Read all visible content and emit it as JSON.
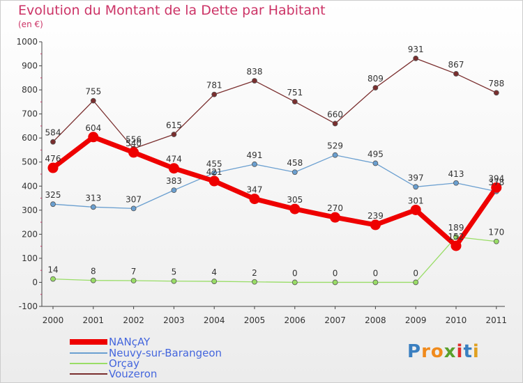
{
  "title": "Evolution du Montant de la Dette par Habitant",
  "subtitle": "(en €)",
  "logo": {
    "text": "Proxiti",
    "colors": [
      "#3a7fc0",
      "#f08a1c",
      "#f08a1c",
      "#5aa02c",
      "#e0302c",
      "#3a7fc0",
      "#e0a020"
    ]
  },
  "chart_data": {
    "type": "line",
    "x": [
      "2000",
      "2001",
      "2002",
      "2003",
      "2004",
      "2005",
      "2006",
      "2007",
      "2008",
      "2009",
      "2010",
      "2011"
    ],
    "ylim": [
      -100,
      1000
    ],
    "yticks": [
      -100,
      0,
      100,
      200,
      300,
      400,
      500,
      600,
      700,
      800,
      900,
      1000
    ],
    "grid": false,
    "legend_position": "bottom-left",
    "series": [
      {
        "name": "NANçAY",
        "color": "#ee0000",
        "width": 7,
        "marker": 7.5,
        "values": [
          476,
          604,
          540,
          474,
          421,
          347,
          305,
          270,
          239,
          301,
          152,
          394
        ],
        "labels": [
          "476",
          "604",
          "540",
          "474",
          "421",
          "347",
          "305",
          "270",
          "239",
          "301",
          "152",
          "394"
        ]
      },
      {
        "name": "Neuvy-sur-Barangeon",
        "color": "#6a9fd0",
        "width": 1.3,
        "marker": 3.5,
        "values": [
          325,
          313,
          307,
          383,
          455,
          491,
          458,
          529,
          495,
          397,
          413,
          378
        ],
        "labels": [
          "325",
          "313",
          "307",
          "383",
          "455",
          "491",
          "458",
          "529",
          "495",
          "397",
          "413",
          "378"
        ]
      },
      {
        "name": "Orçay",
        "color": "#99dd66",
        "width": 1.3,
        "marker": 3.5,
        "values": [
          14,
          8,
          7,
          5,
          4,
          2,
          0,
          0,
          0,
          0,
          189,
          170
        ],
        "labels": [
          "14",
          "8",
          "7",
          "5",
          "4",
          "2",
          "0",
          "0",
          "0",
          "0",
          "189",
          "170"
        ]
      },
      {
        "name": "Vouzeron",
        "color": "#7a2e2e",
        "width": 1.3,
        "marker": 3.5,
        "values": [
          584,
          755,
          556,
          615,
          781,
          838,
          751,
          660,
          809,
          931,
          867,
          788
        ],
        "labels": [
          "584",
          "755",
          "556",
          "615",
          "781",
          "838",
          "751",
          "660",
          "809",
          "931",
          "867",
          "788"
        ]
      }
    ]
  }
}
